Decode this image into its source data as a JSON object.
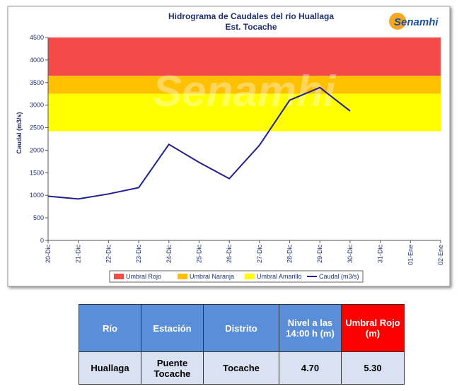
{
  "chart_data": {
    "type": "line",
    "title": "Hidrograma de Caudales del río Huallaga",
    "subtitle": "Est. Tocache",
    "logo": "Senamhi",
    "y_label": "Caudal (m3/s)",
    "categories": [
      "20-Dic",
      "21-Dic",
      "22-Dic",
      "23-Dic",
      "24-Dic",
      "25-Dic",
      "26-Dic",
      "27-Dic",
      "28-Dic",
      "29-Dic",
      "30-Dic",
      "31-Dic",
      "01-Ene",
      "02-Ene"
    ],
    "bands": [
      {
        "name": "Umbral Rojo",
        "color": "#f44a4a",
        "from": 3650,
        "to": 4500
      },
      {
        "name": "Umbral Naranja",
        "color": "#ffc000",
        "from": 3250,
        "to": 3650
      },
      {
        "name": "Umbral Amarillo",
        "color": "#ffff00",
        "from": 2420,
        "to": 3250
      }
    ],
    "series": [
      {
        "name": "Caudal (m3/s)",
        "color": "#1f1f8f",
        "values": [
          980,
          920,
          1030,
          1170,
          2130,
          1730,
          1370,
          2110,
          3110,
          3390,
          2870,
          null,
          null,
          null
        ]
      }
    ],
    "ylim": [
      0,
      4500
    ],
    "yticks": [
      0,
      500,
      1000,
      1500,
      2000,
      2500,
      3000,
      3500,
      4000,
      4500
    ]
  },
  "table": {
    "headers": [
      "Río",
      "Estación",
      "Distrito",
      "Nivel a las 14:00 h (m)",
      "Umbral Rojo (m)"
    ],
    "rows": [
      [
        "Huallaga",
        "Puente Tocache",
        "Tocache",
        "4.70",
        "5.30"
      ]
    ]
  }
}
